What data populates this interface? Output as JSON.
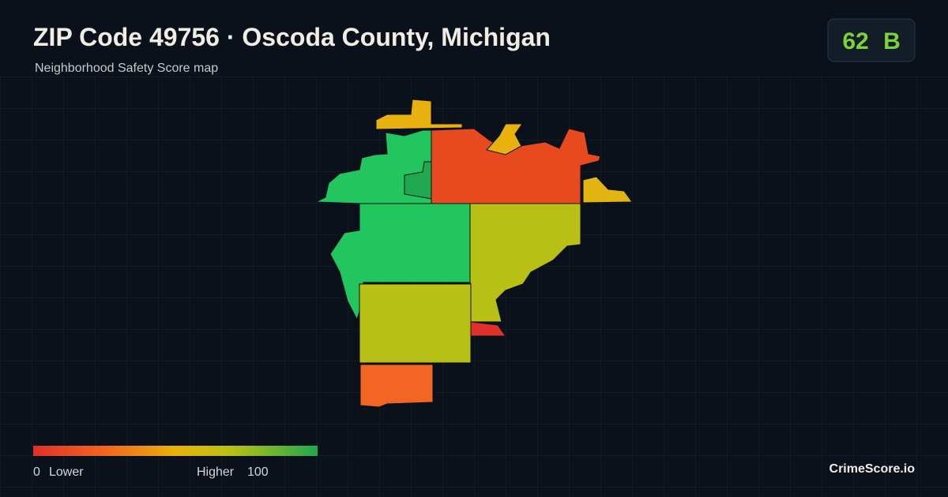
{
  "header": {
    "title": "ZIP Code 49756 · Oscoda County, Michigan",
    "subtitle": "Neighborhood Safety Score map"
  },
  "badge": {
    "score": 62,
    "grade": "B"
  },
  "legend": {
    "min": 0,
    "min_label": "Lower",
    "max_label": "Higher",
    "max": 100
  },
  "footer": {
    "brand": "CrimeScore.io"
  }
}
